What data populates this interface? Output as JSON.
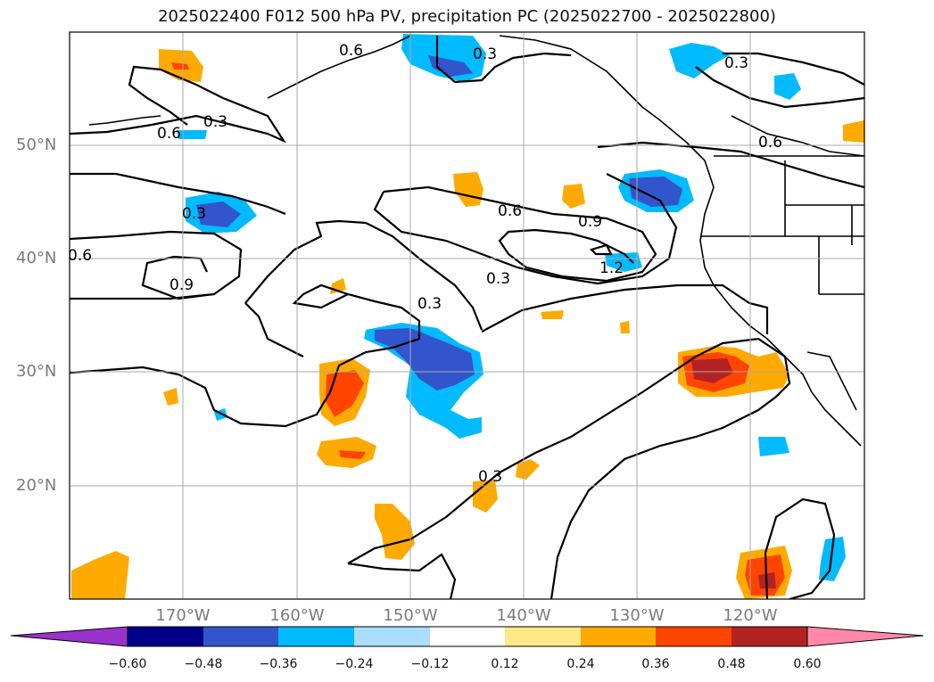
{
  "title": "2025022400 F012 500 hPa PV, precipitation PC (2025022700 - 2025022800)",
  "lat_labels": [
    "50°N",
    "40°N",
    "30°N",
    "20°N"
  ],
  "lon_labels": [
    "170°W",
    "160°W",
    "150°W",
    "140°W",
    "130°W",
    "120°W"
  ],
  "contour_labels": [
    "0.6",
    "0.3",
    "0.3",
    "0.6",
    "0.3",
    "0.6",
    "0.6",
    "0.9",
    "0.9",
    "1.2",
    "0.3",
    "0.3",
    "0.3",
    "0.3",
    "0.6"
  ],
  "colorbar": {
    "ticks": [
      "−0.60",
      "−0.48",
      "−0.36",
      "−0.24",
      "−0.12",
      "0.12",
      "0.24",
      "0.36",
      "0.48",
      "0.60"
    ],
    "colors": [
      "#9933cc",
      "#000088",
      "#3355cc",
      "#00bbff",
      "#aaddff",
      "#ffffff",
      "#ffe888",
      "#ffaa00",
      "#ff4400",
      "#b22222",
      "#ff88aa"
    ]
  }
}
